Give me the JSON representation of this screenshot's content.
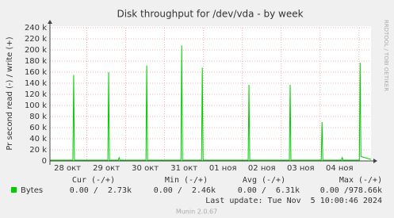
{
  "chart_data": {
    "type": "line",
    "title": "Disk throughput for /dev/vda - by week",
    "y_label": "Pr second read (-) / write (+)",
    "side_label": "RRDTOOL / TOBI OETIKER",
    "xlim": [
      27.55,
      35.81
    ],
    "xticks": [
      {
        "value": 28,
        "label": "28 окт"
      },
      {
        "value": 29,
        "label": "29 окт"
      },
      {
        "value": 30,
        "label": "30 окт"
      },
      {
        "value": 31,
        "label": "31 окт"
      },
      {
        "value": 32,
        "label": "01 ноя"
      },
      {
        "value": 33,
        "label": "02 ноя"
      },
      {
        "value": 34,
        "label": "03 ноя"
      },
      {
        "value": 35,
        "label": "04 ноя"
      }
    ],
    "ylim": [
      0,
      240000
    ],
    "yticks": [
      0,
      {
        "value": 20000,
        "label": "20 k"
      },
      {
        "value": 40000,
        "label": "40 k"
      },
      {
        "value": 60000,
        "label": "60 k"
      },
      {
        "value": 80000,
        "label": "80 k"
      },
      {
        "value": 100000,
        "label": "100 k"
      },
      {
        "value": 120000,
        "label": "120 k"
      },
      {
        "value": 140000,
        "label": "140 k"
      },
      {
        "value": 160000,
        "label": "160 k"
      },
      {
        "value": 180000,
        "label": "180 k"
      },
      {
        "value": 200000,
        "label": "200 k"
      },
      {
        "value": 220000,
        "label": "220 k"
      },
      {
        "value": 240000,
        "label": "240 k"
      }
    ],
    "grid": true,
    "series": [
      {
        "name": "Bytes",
        "color": "#00cc00",
        "x": [
          27.55,
          28.14,
          28.16,
          28.18,
          29.04,
          29.06,
          29.08,
          29.31,
          29.33,
          29.35,
          30.02,
          30.04,
          30.06,
          30.92,
          30.94,
          30.96,
          31.45,
          31.47,
          31.49,
          32.65,
          32.67,
          32.69,
          33.71,
          33.73,
          33.75,
          34.53,
          34.55,
          34.57,
          35.05,
          35.07,
          35.09,
          35.51,
          35.53,
          35.55,
          35.81
        ],
        "values": [
          1500,
          1500,
          155000,
          1500,
          1500,
          160000,
          1500,
          1500,
          6000,
          1500,
          1500,
          172000,
          1500,
          1500,
          208000,
          1500,
          1500,
          168000,
          1500,
          1500,
          137000,
          1500,
          1500,
          137000,
          1500,
          1500,
          70000,
          1500,
          1500,
          6000,
          1500,
          1500,
          177000,
          8000,
          2700
        ]
      }
    ],
    "summary": {
      "headers": [
        "Cur (-/+)",
        "Min (-/+)",
        "Avg (-/+)",
        "Max (-/+)"
      ],
      "values": [
        "0.00 /  2.73k",
        "0.00 /  2.46k",
        "0.00 /  6.31k",
        "0.00 /978.66k"
      ]
    },
    "last_update": "Last update: Tue Nov  5 10:00:46 2024",
    "footer": "Munin 2.0.67"
  }
}
